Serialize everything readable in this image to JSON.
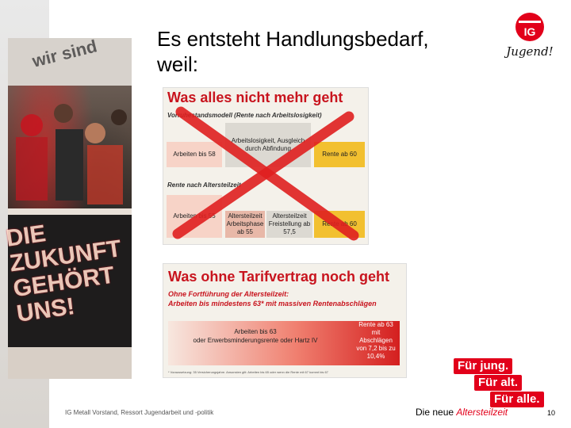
{
  "slide": {
    "title_line1": "Es entsteht Handlungsbedarf,",
    "title_line2": "weil:"
  },
  "photo": {
    "banner_text": "wir sind",
    "slogan_line1": "DIE",
    "slogan_line2": "ZUKUNFT",
    "slogan_line3": "GEHÖRT",
    "slogan_line4": "UNS!"
  },
  "logo": {
    "brand": "IG",
    "script_text": "Jugend!"
  },
  "panel1": {
    "heading": "Was alles nicht mehr geht",
    "subtitle_a": "Vorruhestandsmodell (Rente nach Arbeitslosigkeit)",
    "box_arbeiten_58": "Arbeiten bis 58",
    "box_arbeitslos": "Arbeitslosigkeit, Ausgleich durch Abfindung",
    "box_rente60_a": "Rente ab 60",
    "subtitle_b": "Rente nach Altersteilzeit",
    "box_arbeiten_55": "Arbeiten bis 55",
    "box_arbeitsphase": "Altersteilzeit Arbeitsphase ab 55",
    "box_freistellung": "Altersteilzeit Freistellung ab 57,5",
    "box_rente60_b": "Rente ab 60"
  },
  "panel2": {
    "heading": "Was ohne Tarifvertrag noch geht",
    "sub_line1": "Ohne Fortführung der Altersteilzeit:",
    "sub_line2": "Arbeiten bis mindestens 63* mit massiven Rentenabschlägen",
    "bar_left_line1": "Arbeiten bis 63",
    "bar_left_line2": "oder Erwerbsminderungsrente oder Hartz IV",
    "bar_right": "Rente ab 63 mit Abschlägen von 7,2 bis zu 10,4%",
    "footnote": "* Voraussetzung: 35 Versicherungsjahre. Ansonsten gilt: Arbeiten bis 65 oder wenn die Rente mit 67 kommt bis 67"
  },
  "slogan": {
    "line1": "Für jung.",
    "line2": "Für alt.",
    "line3": "Für alle."
  },
  "footer": {
    "organization": "IG Metall Vorstand, Ressort Jugendarbeit und -politik",
    "topic_prefix": "Die neue ",
    "topic_emph": "Altersteilzeit",
    "page_number": "10"
  },
  "colors": {
    "accent": "#e2001a",
    "heading_red": "#c8141e",
    "cross_red": "#e02020"
  }
}
